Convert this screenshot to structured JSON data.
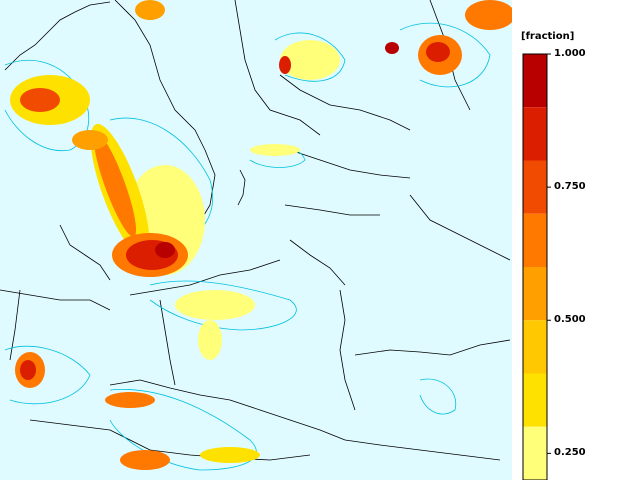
{
  "legend": {
    "unit": "[fraction]",
    "ticks": [
      {
        "value": 1.0,
        "label": "1.000"
      },
      {
        "value": 0.75,
        "label": "0.750"
      },
      {
        "value": 0.5,
        "label": "0.500"
      },
      {
        "value": 0.25,
        "label": "0.250"
      }
    ],
    "classes": [
      {
        "from": 0.9,
        "to": 1.0,
        "color": "#b80000"
      },
      {
        "from": 0.8,
        "to": 0.9,
        "color": "#dc1e00"
      },
      {
        "from": 0.7,
        "to": 0.8,
        "color": "#f04b00"
      },
      {
        "from": 0.6,
        "to": 0.7,
        "color": "#ff7800"
      },
      {
        "from": 0.5,
        "to": 0.6,
        "color": "#ffa000"
      },
      {
        "from": 0.4,
        "to": 0.5,
        "color": "#ffc800"
      },
      {
        "from": 0.3,
        "to": 0.4,
        "color": "#ffe100"
      },
      {
        "from": 0.2,
        "to": 0.3,
        "color": "#ffff7a"
      }
    ]
  },
  "map": {
    "background_color": "#dffbff",
    "contour_color": "#00c0e0",
    "border_color": "#000000"
  }
}
